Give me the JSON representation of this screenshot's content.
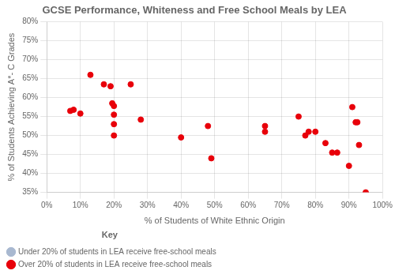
{
  "chart_data": {
    "type": "scatter",
    "title": "GCSE Performance, Whiteness and Free School Meals by LEA",
    "xlabel": "% of Students of White Ethnic Origin",
    "ylabel": "% of Students Achieving A*- C Grades",
    "xlim": [
      0,
      1.0
    ],
    "ylim": [
      0.35,
      0.8
    ],
    "xticks": [
      {
        "value": 0.0,
        "label": "0%"
      },
      {
        "value": 0.1,
        "label": "10%"
      },
      {
        "value": 0.2,
        "label": "20%"
      },
      {
        "value": 0.3,
        "label": "30%"
      },
      {
        "value": 0.4,
        "label": "40%"
      },
      {
        "value": 0.5,
        "label": "50%"
      },
      {
        "value": 0.6,
        "label": "60%"
      },
      {
        "value": 0.7,
        "label": "70%"
      },
      {
        "value": 0.8,
        "label": "80%"
      },
      {
        "value": 0.9,
        "label": "90%"
      },
      {
        "value": 1.0,
        "label": "100%"
      }
    ],
    "yticks": [
      {
        "value": 0.35,
        "label": "35%"
      },
      {
        "value": 0.4,
        "label": "40%"
      },
      {
        "value": 0.45,
        "label": "45%"
      },
      {
        "value": 0.5,
        "label": "50%"
      },
      {
        "value": 0.55,
        "label": "55%"
      },
      {
        "value": 0.6,
        "label": "60%"
      },
      {
        "value": 0.65,
        "label": "65%"
      },
      {
        "value": 0.7,
        "label": "70%"
      },
      {
        "value": 0.75,
        "label": "75%"
      },
      {
        "value": 0.8,
        "label": "80%"
      }
    ],
    "grid": true,
    "legend": "bottom",
    "legend_title": "Key",
    "marker": "circle",
    "series": [
      {
        "name": "Under 20% of students in LEA receive free-school meals",
        "color": "#a8b8d0",
        "x": [],
        "values": []
      },
      {
        "name": "Over 20% of students in LEA receive free-school meals",
        "color": "#e8000a",
        "x": [
          0.07,
          0.08,
          0.1,
          0.13,
          0.17,
          0.19,
          0.195,
          0.2,
          0.2,
          0.2,
          0.2,
          0.25,
          0.28,
          0.4,
          0.48,
          0.49,
          0.65,
          0.65,
          0.75,
          0.77,
          0.78,
          0.8,
          0.83,
          0.85,
          0.865,
          0.9,
          0.91,
          0.92,
          0.925,
          0.93,
          0.95
        ],
        "values": [
          0.565,
          0.568,
          0.558,
          0.66,
          0.635,
          0.63,
          0.585,
          0.578,
          0.555,
          0.53,
          0.5,
          0.635,
          0.542,
          0.495,
          0.525,
          0.44,
          0.525,
          0.51,
          0.55,
          0.5,
          0.51,
          0.51,
          0.48,
          0.455,
          0.455,
          0.42,
          0.575,
          0.535,
          0.535,
          0.475,
          0.35
        ]
      }
    ]
  }
}
